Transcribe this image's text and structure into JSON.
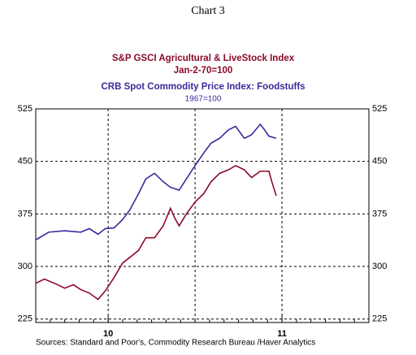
{
  "chart_data": {
    "type": "line",
    "title": "Chart 3",
    "series": [
      {
        "name": "S&P  GSCI Agricultural & LiveStock Index",
        "subtitle": "Jan-2-70=100",
        "color": "#8b0a2a",
        "x": [
          0,
          0.6,
          1.5,
          2.0,
          2.6,
          3.1,
          3.7,
          4.3,
          4.8,
          5.4,
          6.0,
          6.5,
          7.1,
          7.6,
          8.2,
          8.8,
          9.3,
          9.6,
          9.9,
          10.4,
          11.0,
          11.6,
          12.1,
          12.7,
          13.3,
          13.8,
          14.4,
          14.9,
          15.5,
          16.1,
          16.3,
          16.6
        ],
        "values": [
          276,
          282,
          274,
          269,
          274,
          267,
          262,
          253,
          265,
          284,
          305,
          313,
          323,
          341,
          341,
          358,
          383,
          369,
          358,
          375,
          392,
          404,
          421,
          433,
          438,
          444,
          438,
          427,
          436,
          436,
          421,
          401
        ]
      },
      {
        "name": "CRB Spot Commodity Price Index: Foodstuffs",
        "subtitle": "1967=100",
        "color": "#3a2a9a",
        "x": [
          0,
          0.9,
          2.0,
          3.1,
          3.7,
          4.3,
          4.8,
          5.4,
          6.0,
          6.5,
          7.1,
          7.6,
          8.2,
          8.8,
          9.3,
          9.9,
          10.4,
          11.0,
          11.6,
          12.1,
          12.7,
          13.3,
          13.8,
          14.4,
          14.9,
          15.5,
          15.8,
          16.1,
          16.6
        ],
        "values": [
          338,
          349,
          351,
          349,
          354,
          346,
          354,
          355,
          367,
          381,
          404,
          425,
          433,
          421,
          413,
          409,
          425,
          444,
          462,
          476,
          483,
          495,
          500,
          483,
          488,
          503,
          495,
          486,
          483
        ]
      }
    ],
    "xlim": [
      0,
      23
    ],
    "xticks": [
      {
        "value": 5,
        "label": "10"
      },
      {
        "value": 17,
        "label": "11"
      }
    ],
    "xgrid": [
      5,
      11,
      17
    ],
    "ylim": [
      220,
      525
    ],
    "yticks": [
      225,
      300,
      375,
      450,
      525
    ],
    "grid": true,
    "source": "Sources:  Standard and Poor's, Commodity Research Bureau /Haver Analytics"
  }
}
